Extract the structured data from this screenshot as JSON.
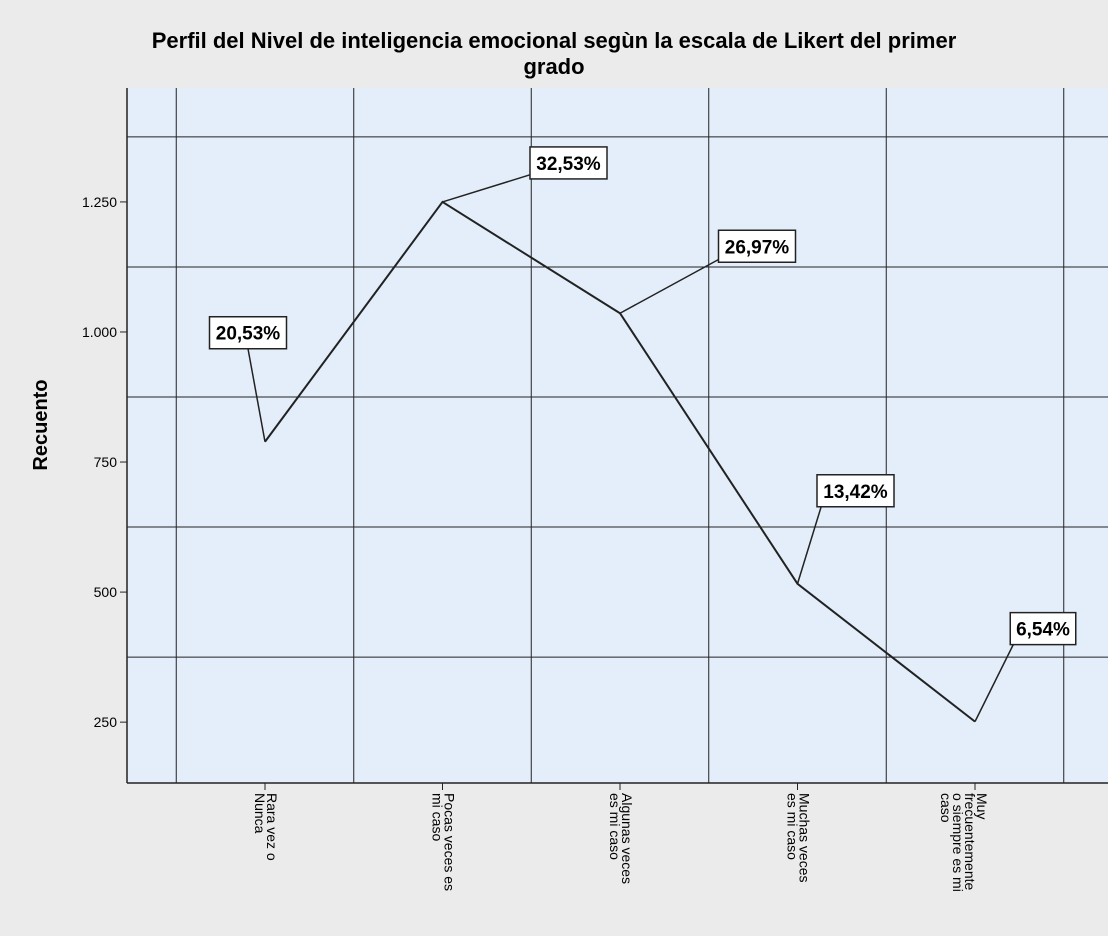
{
  "chart_data": {
    "type": "line",
    "title": [
      "Perfil del Nivel de inteligencia emocional segùn la escala de Likert del primer",
      "grado"
    ],
    "y_label": "Recuento",
    "categories": [
      [
        "Rara vez o",
        "Nunca"
      ],
      [
        "Pocas veces es",
        "mi caso"
      ],
      [
        "Algunas veces",
        "es mi caso"
      ],
      [
        "Muchas veces",
        "es mi caso"
      ],
      [
        "Muy",
        "frecuentemente",
        "o siempre es mi",
        "caso"
      ]
    ],
    "values": [
      789,
      1250,
      1036,
      516,
      251
    ],
    "percent_labels": [
      "20,53%",
      "32,53%",
      "26,97%",
      "13,42%",
      "6,54%"
    ],
    "color": "#222222",
    "ylim": [
      133,
      1469
    ],
    "yticks": [
      {
        "value": 250,
        "label": "250"
      },
      {
        "value": 500,
        "label": "500"
      },
      {
        "value": 750,
        "label": "750"
      },
      {
        "value": 1000,
        "label": "1.000"
      },
      {
        "value": 1250,
        "label": "1.250"
      }
    ],
    "ygridlines": [
      375,
      625,
      875,
      1125,
      1375
    ],
    "grid": true
  }
}
